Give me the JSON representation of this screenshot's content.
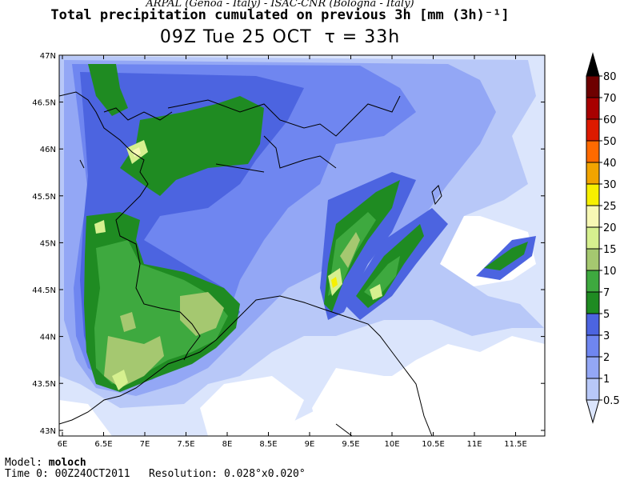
{
  "header": {
    "credits": "ARPAL (Genoa - Italy)  -  ISAC-CNR (Bologna - Italy)",
    "title": "Total precipitation cumulated on previous 3h [mm (3h)⁻¹]",
    "valid_time": "09Z Tue 25 OCT",
    "tau_label": "τ = 33h"
  },
  "axes": {
    "lon_ticks": [
      "6E",
      "6.5E",
      "7E",
      "7.5E",
      "8E",
      "8.5E",
      "9E",
      "9.5E",
      "10E",
      "10.5E",
      "11E",
      "11.5E"
    ],
    "lat_ticks": [
      "47N",
      "46.5N",
      "46N",
      "45.5N",
      "45N",
      "44.5N",
      "44N",
      "43.5N",
      "43N"
    ]
  },
  "colorbar": {
    "labels": [
      "80",
      "70",
      "60",
      "50",
      "40",
      "30",
      "25",
      "20",
      "15",
      "10",
      "7",
      "5",
      "3",
      "2",
      "1",
      "0.5"
    ],
    "colors": [
      "#000000",
      "#6e0000",
      "#a80000",
      "#dd1a00",
      "#ff6a00",
      "#f2a400",
      "#f7f000",
      "#f7f8b4",
      "#d6f08f",
      "#a5c870",
      "#3ea93f",
      "#1f8b22",
      "#4c64e0",
      "#6f86f0",
      "#93a7f5",
      "#b8c8f8",
      "#dbe5fc"
    ]
  },
  "footer": {
    "model_label": "Model:",
    "model_value": "moloch",
    "time_label": "Time 0:",
    "time_value": "00Z24OCT2011",
    "resolution_label": "Resolution:",
    "resolution_value": "0.028°x0.020°"
  }
}
